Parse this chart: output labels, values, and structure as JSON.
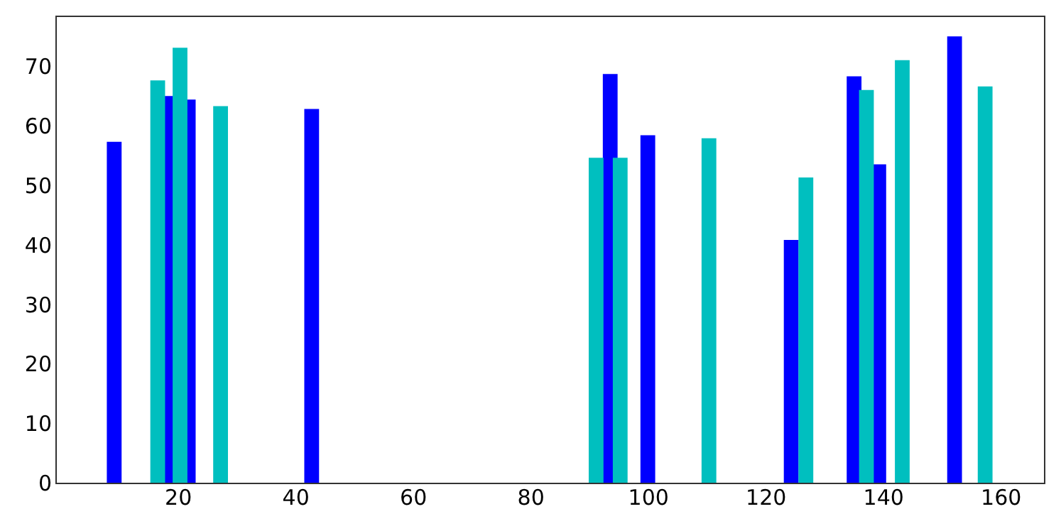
{
  "chart_data": {
    "type": "bar",
    "grid": false,
    "xlim": [
      0.4,
      166.2
    ],
    "xticks": [
      20,
      40,
      60,
      80,
      100,
      120,
      140,
      160
    ],
    "ylim": [
      0,
      78.5
    ],
    "yticks": [
      0,
      10,
      20,
      30,
      40,
      50,
      60,
      70
    ],
    "series": [
      {
        "color": "#0000ff",
        "x": [
          9.2,
          18.2,
          21.8,
          42.8,
          93.6,
          100.0,
          124.4,
          135.1,
          139.3,
          152.2
        ],
        "values": [
          57.3,
          65.0,
          64.4,
          62.8,
          68.7,
          58.4,
          40.8,
          68.3,
          53.5,
          75.0
        ]
      },
      {
        "color": "#00bfbf",
        "x": [
          16.6,
          20.4,
          27.3,
          91.2,
          95.3,
          110.4,
          126.9,
          137.2,
          143.3,
          157.4
        ],
        "values": [
          67.6,
          73.1,
          63.3,
          54.6,
          54.6,
          57.9,
          51.3,
          66.0,
          71.0,
          66.6
        ]
      }
    ]
  }
}
